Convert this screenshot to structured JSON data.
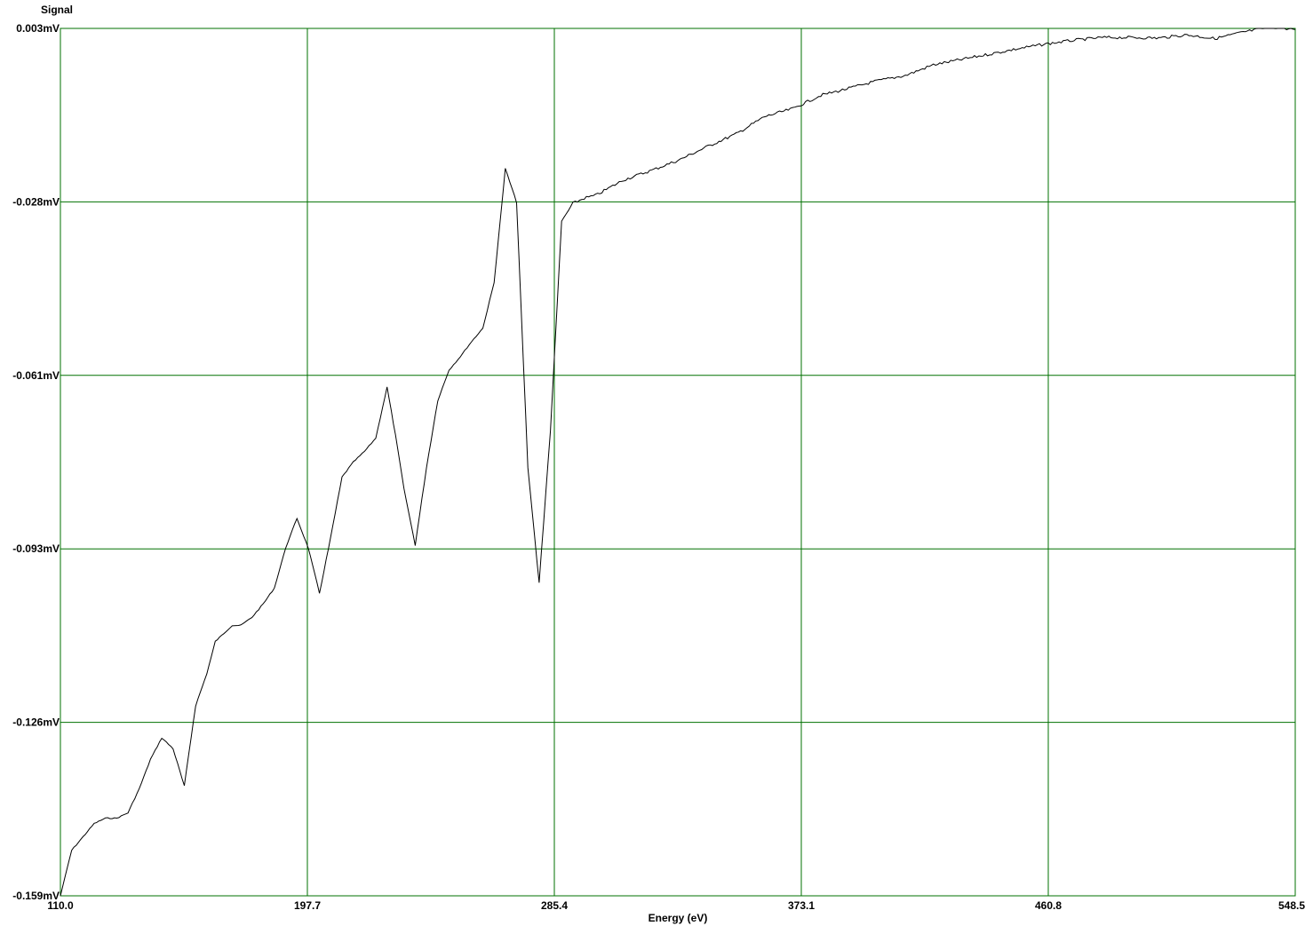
{
  "chart_data": {
    "type": "line",
    "xlabel": "Energy (eV)",
    "ylabel": "Signal",
    "x_ticks": [
      "110.0",
      "197.7",
      "285.4",
      "373.1",
      "460.8",
      "548.5"
    ],
    "y_ticks": [
      "0.003mV",
      "-0.028mV",
      "-0.061mV",
      "-0.093mV",
      "-0.126mV",
      "-0.159mV"
    ],
    "xlim": [
      110.0,
      548.5
    ],
    "ylim": [
      -0.159,
      0.003
    ],
    "grid": true,
    "colors": {
      "grid": "#007000",
      "line": "#000000",
      "background": "#ffffff"
    },
    "series": [
      {
        "x": [
          110,
          114,
          118,
          122,
          126,
          130,
          134,
          138,
          142,
          146,
          150,
          154,
          158,
          162,
          165,
          168,
          171,
          174,
          178,
          182,
          186,
          190,
          194,
          198,
          202,
          206,
          210,
          214,
          218,
          222,
          226,
          229,
          232,
          236,
          240,
          244,
          248,
          252,
          256,
          260,
          264,
          268,
          272,
          276,
          280,
          284,
          288,
          292,
          296,
          300,
          310,
          320,
          330,
          340,
          350,
          360,
          370,
          380,
          390,
          400,
          410,
          420,
          430,
          440,
          450,
          460,
          470,
          480,
          490,
          500,
          510,
          520,
          530,
          540,
          548.5
        ],
        "y": [
          -0.159,
          -0.1505,
          -0.148,
          -0.1455,
          -0.1445,
          -0.1445,
          -0.1435,
          -0.139,
          -0.1335,
          -0.1295,
          -0.1315,
          -0.1385,
          -0.1235,
          -0.1175,
          -0.1115,
          -0.11,
          -0.1085,
          -0.1085,
          -0.107,
          -0.1045,
          -0.1015,
          -0.094,
          -0.0885,
          -0.094,
          -0.1025,
          -0.092,
          -0.0808,
          -0.078,
          -0.076,
          -0.0735,
          -0.064,
          -0.073,
          -0.083,
          -0.0935,
          -0.079,
          -0.0665,
          -0.0608,
          -0.0583,
          -0.0555,
          -0.053,
          -0.0445,
          -0.0232,
          -0.0295,
          -0.079,
          -0.1005,
          -0.0722,
          -0.033,
          -0.0297,
          -0.0287,
          -0.0282,
          -0.0253,
          -0.0235,
          -0.0215,
          -0.019,
          -0.0167,
          -0.0135,
          -0.012,
          -0.0095,
          -0.0082,
          -0.0068,
          -0.0058,
          -0.0038,
          -0.0028,
          -0.0018,
          -0.0008,
          0.0001,
          0.0008,
          0.0013,
          0.0013,
          0.0012,
          0.0018,
          0.0011,
          0.0023,
          0.0033,
          0.0028
        ]
      }
    ]
  }
}
